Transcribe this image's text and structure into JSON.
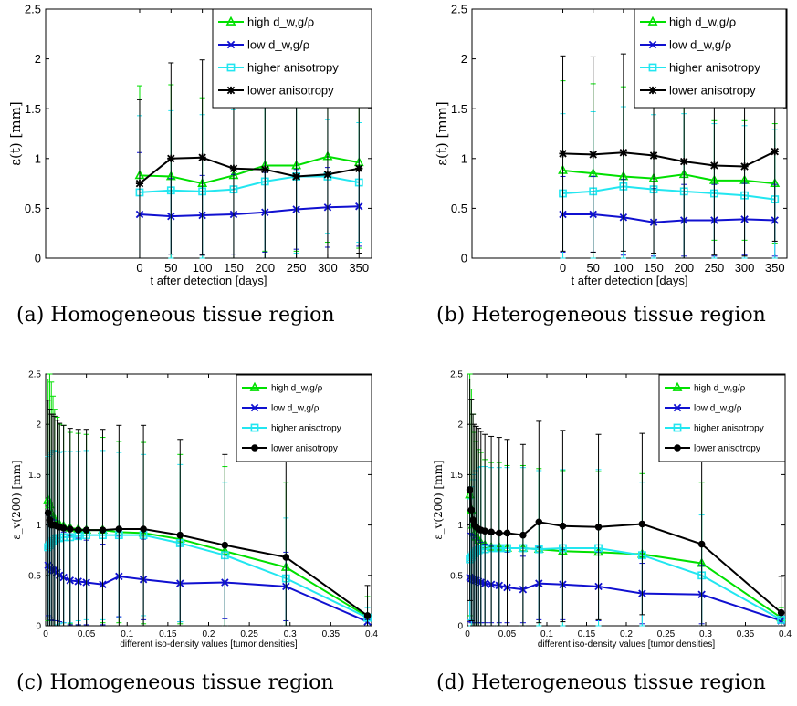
{
  "figure": {
    "captions": [
      "(a) Homogeneous tissue region",
      "(b) Heterogeneous tissue region",
      "(c) Homogeneous tissue region",
      "(d) Heterogeneous tissue region"
    ]
  },
  "colors": {
    "high_d": "#00e000",
    "low_d": "#1010d0",
    "higher_aniso": "#22e6f0",
    "lower_aniso": "#000000"
  },
  "chart_data": [
    {
      "type": "line",
      "panel": "a",
      "title": "",
      "xlabel": "t after detection [days]",
      "ylabel": "ε(t) [mm]",
      "xlim": [
        -150,
        370
      ],
      "ylim": [
        0,
        2.5
      ],
      "xticks": [
        "0",
        "50",
        "100",
        "150",
        "200",
        "250",
        "300",
        "350"
      ],
      "yticks": [
        "0",
        "0.5",
        "1",
        "1.5",
        "2",
        "2.5"
      ],
      "legend_position": "top-right",
      "x": [
        0,
        50,
        100,
        150,
        200,
        250,
        300,
        350
      ],
      "series": [
        {
          "name": "high d_w,g/ρ",
          "color_key": "high_d",
          "marker": "triangle",
          "values": [
            0.83,
            0.82,
            0.75,
            0.83,
            0.93,
            0.93,
            1.02,
            0.96
          ],
          "err": [
            0.9,
            0.92,
            0.86,
            0.92,
            0.86,
            0.86,
            0.86,
            0.86
          ]
        },
        {
          "name": "low d_w,g/ρ",
          "color_key": "low_d",
          "marker": "x",
          "values": [
            0.44,
            0.42,
            0.43,
            0.44,
            0.46,
            0.49,
            0.51,
            0.52
          ],
          "err": [
            0.62,
            0.38,
            0.4,
            0.4,
            0.4,
            0.4,
            0.4,
            0.4
          ]
        },
        {
          "name": "higher anisotropy",
          "color_key": "higher_aniso",
          "marker": "square",
          "values": [
            0.66,
            0.68,
            0.67,
            0.69,
            0.77,
            0.82,
            0.82,
            0.76
          ],
          "err": [
            0.77,
            0.8,
            0.77,
            0.8,
            0.77,
            0.77,
            0.57,
            0.6
          ]
        },
        {
          "name": "lower anisotropy",
          "color_key": "lower_aniso",
          "marker": "star",
          "values": [
            0.75,
            1.0,
            1.01,
            0.9,
            0.89,
            0.82,
            0.84,
            0.9
          ],
          "err": [
            0.84,
            0.96,
            0.98,
            0.92,
            0.9,
            0.85,
            0.84,
            0.85
          ]
        }
      ]
    },
    {
      "type": "line",
      "panel": "b",
      "title": "",
      "xlabel": "t after detection [days]",
      "ylabel": "ε(t) [mm]",
      "xlim": [
        -150,
        370
      ],
      "ylim": [
        0,
        2.5
      ],
      "xticks": [
        "0",
        "50",
        "100",
        "150",
        "200",
        "250",
        "300",
        "350"
      ],
      "yticks": [
        "0",
        "0.5",
        "1",
        "1.5",
        "2",
        "2.5"
      ],
      "legend_position": "top-right",
      "x": [
        0,
        50,
        100,
        150,
        200,
        250,
        300,
        350
      ],
      "series": [
        {
          "name": "high d_w,g/ρ",
          "color_key": "high_d",
          "marker": "triangle",
          "values": [
            0.88,
            0.85,
            0.82,
            0.8,
            0.84,
            0.78,
            0.78,
            0.75
          ],
          "err": [
            0.9,
            0.9,
            0.9,
            0.85,
            0.9,
            0.6,
            0.6,
            0.6
          ]
        },
        {
          "name": "low d_w,g/ρ",
          "color_key": "low_d",
          "marker": "x",
          "values": [
            0.44,
            0.44,
            0.41,
            0.36,
            0.38,
            0.38,
            0.39,
            0.38
          ],
          "err": [
            0.38,
            0.38,
            0.38,
            0.34,
            0.36,
            0.36,
            0.36,
            0.36
          ]
        },
        {
          "name": "higher anisotropy",
          "color_key": "higher_aniso",
          "marker": "square",
          "values": [
            0.65,
            0.67,
            0.72,
            0.69,
            0.67,
            0.65,
            0.63,
            0.59
          ],
          "err": [
            0.8,
            0.8,
            0.8,
            0.75,
            0.78,
            0.7,
            0.7,
            0.7
          ]
        },
        {
          "name": "lower anisotropy",
          "color_key": "lower_aniso",
          "marker": "star",
          "values": [
            1.05,
            1.04,
            1.06,
            1.03,
            0.97,
            0.93,
            0.92,
            1.07
          ],
          "err": [
            0.98,
            0.98,
            0.99,
            0.98,
            0.97,
            0.9,
            0.9,
            0.9
          ]
        }
      ]
    },
    {
      "type": "line",
      "panel": "c",
      "title": "",
      "xlabel": "different iso-density values [tumor densities]",
      "ylabel": "ε_v(200) [mm]",
      "xlim": [
        0,
        0.4
      ],
      "ylim": [
        0,
        2.5
      ],
      "xticks": [
        "0",
        "0.05",
        "0.1",
        "0.15",
        "0.2",
        "0.25",
        "0.3",
        "0.35",
        "0.4"
      ],
      "yticks": [
        "0",
        "0.5",
        "1",
        "1.5",
        "2",
        "2.5"
      ],
      "legend_position": "top-right",
      "x": [
        0.003,
        0.005,
        0.007,
        0.009,
        0.011,
        0.014,
        0.017,
        0.022,
        0.03,
        0.04,
        0.05,
        0.07,
        0.09,
        0.12,
        0.165,
        0.22,
        0.295,
        0.395
      ],
      "series": [
        {
          "name": "high d_w,g/ρ",
          "color_key": "high_d",
          "marker": "triangle",
          "values": [
            1.25,
            1.2,
            1.12,
            1.08,
            1.05,
            1.02,
            1.0,
            0.99,
            0.97,
            0.96,
            0.95,
            0.95,
            0.93,
            0.92,
            0.86,
            0.74,
            0.58,
            0.09
          ],
          "err": [
            1.2,
            1.3,
            1.3,
            1.2,
            1.1,
            1.05,
            1.0,
            1.0,
            0.95,
            0.95,
            0.95,
            0.92,
            0.9,
            0.9,
            0.84,
            0.84,
            0.84,
            0.2
          ]
        },
        {
          "name": "low d_w,g/ρ",
          "color_key": "low_d",
          "marker": "x",
          "values": [
            0.6,
            0.58,
            0.56,
            0.55,
            0.55,
            0.53,
            0.5,
            0.48,
            0.45,
            0.44,
            0.43,
            0.41,
            0.49,
            0.46,
            0.42,
            0.43,
            0.39,
            0.04
          ],
          "err": [
            0.5,
            0.5,
            0.5,
            0.5,
            0.5,
            0.48,
            0.46,
            0.45,
            0.44,
            0.43,
            0.42,
            0.4,
            0.4,
            0.4,
            0.38,
            0.36,
            0.34,
            0.04
          ]
        },
        {
          "name": "higher anisotropy",
          "color_key": "higher_aniso",
          "marker": "square",
          "values": [
            0.78,
            0.8,
            0.82,
            0.84,
            0.86,
            0.87,
            0.87,
            0.88,
            0.88,
            0.89,
            0.9,
            0.9,
            0.9,
            0.9,
            0.82,
            0.7,
            0.47,
            0.08
          ],
          "err": [
            0.9,
            0.9,
            0.9,
            0.9,
            0.88,
            0.86,
            0.85,
            0.85,
            0.85,
            0.84,
            0.84,
            0.84,
            0.82,
            0.8,
            0.78,
            0.72,
            0.6,
            0.1
          ]
        },
        {
          "name": "lower anisotropy",
          "color_key": "lower_aniso",
          "marker": "circle",
          "values": [
            1.12,
            1.05,
            1.0,
            1.0,
            1.0,
            0.99,
            0.98,
            0.97,
            0.96,
            0.95,
            0.95,
            0.95,
            0.96,
            0.96,
            0.9,
            0.8,
            0.68,
            0.1
          ],
          "err": [
            1.12,
            1.1,
            1.1,
            1.1,
            1.08,
            1.05,
            1.03,
            1.02,
            1.0,
            1.0,
            1.0,
            1.0,
            1.03,
            1.03,
            0.95,
            0.9,
            0.97,
            0.3
          ]
        }
      ]
    },
    {
      "type": "line",
      "panel": "d",
      "title": "",
      "xlabel": "different iso-density values [tumor densities]",
      "ylabel": "ε_v(200) [mm]",
      "xlim": [
        0,
        0.4
      ],
      "ylim": [
        0,
        2.5
      ],
      "xticks": [
        "0",
        "0.05",
        "0.1",
        "0.15",
        "0.2",
        "0.25",
        "0.3",
        "0.35",
        "0.4"
      ],
      "yticks": [
        "0",
        "0.5",
        "1",
        "1.5",
        "2",
        "2.5"
      ],
      "legend_position": "top-right",
      "x": [
        0.003,
        0.005,
        0.007,
        0.009,
        0.011,
        0.014,
        0.017,
        0.022,
        0.03,
        0.04,
        0.05,
        0.07,
        0.09,
        0.12,
        0.165,
        0.22,
        0.295,
        0.395
      ],
      "series": [
        {
          "name": "high d_w,g/ρ",
          "color_key": "high_d",
          "marker": "triangle",
          "values": [
            1.3,
            1.15,
            1.0,
            0.92,
            0.88,
            0.85,
            0.82,
            0.8,
            0.78,
            0.78,
            0.77,
            0.77,
            0.76,
            0.74,
            0.73,
            0.71,
            0.62,
            0.08
          ],
          "err": [
            1.2,
            1.2,
            1.1,
            1.0,
            0.95,
            0.9,
            0.9,
            0.85,
            0.84,
            0.84,
            0.82,
            0.82,
            0.8,
            0.8,
            0.8,
            0.8,
            0.8,
            0.1
          ]
        },
        {
          "name": "low d_w,g/ρ",
          "color_key": "low_d",
          "marker": "x",
          "values": [
            0.48,
            0.47,
            0.46,
            0.45,
            0.45,
            0.44,
            0.43,
            0.42,
            0.41,
            0.4,
            0.38,
            0.36,
            0.42,
            0.41,
            0.39,
            0.32,
            0.31,
            0.05
          ],
          "err": [
            0.44,
            0.44,
            0.43,
            0.42,
            0.42,
            0.41,
            0.4,
            0.39,
            0.38,
            0.37,
            0.35,
            0.33,
            0.36,
            0.35,
            0.34,
            0.3,
            0.29,
            0.05
          ]
        },
        {
          "name": "higher anisotropy",
          "color_key": "higher_aniso",
          "marker": "square",
          "values": [
            0.66,
            0.68,
            0.7,
            0.72,
            0.74,
            0.75,
            0.76,
            0.76,
            0.77,
            0.77,
            0.77,
            0.77,
            0.76,
            0.77,
            0.77,
            0.7,
            0.5,
            0.06
          ],
          "err": [
            0.6,
            0.7,
            0.75,
            0.78,
            0.8,
            0.82,
            0.82,
            0.82,
            0.8,
            0.8,
            0.8,
            0.8,
            0.78,
            0.78,
            0.78,
            0.72,
            0.6,
            0.08
          ]
        },
        {
          "name": "lower anisotropy",
          "color_key": "lower_aniso",
          "marker": "circle",
          "values": [
            1.35,
            1.15,
            1.05,
            1.0,
            0.98,
            0.96,
            0.95,
            0.94,
            0.93,
            0.92,
            0.92,
            0.9,
            1.03,
            0.99,
            0.98,
            1.01,
            0.81,
            0.13
          ],
          "err": [
            1.1,
            1.1,
            1.05,
            1.0,
            1.0,
            1.0,
            0.98,
            0.96,
            0.95,
            0.95,
            0.93,
            0.9,
            1.0,
            0.95,
            0.92,
            0.9,
            0.95,
            0.36
          ]
        }
      ]
    }
  ]
}
